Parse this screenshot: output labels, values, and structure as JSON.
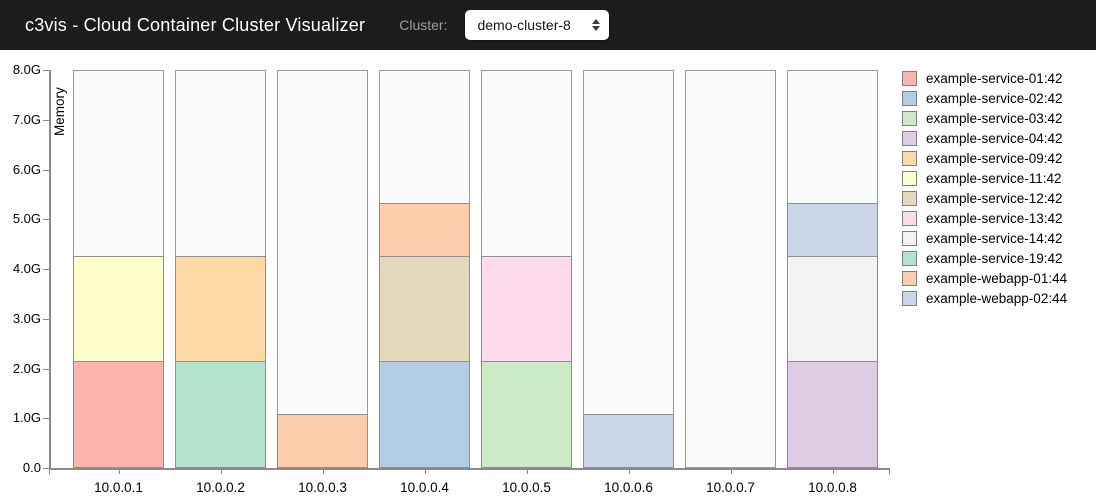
{
  "header": {
    "title": "c3vis - Cloud Container Cluster Visualizer",
    "cluster_label": "Cluster:",
    "cluster_select": {
      "value": "demo-cluster-8"
    }
  },
  "chart_data": {
    "type": "bar",
    "stacked": true,
    "ylabel": "Memory",
    "unit": "G",
    "ylim": [
      0,
      8
    ],
    "registered_memory_per_instance_g": 8.0,
    "y_ticks": [
      "0.0",
      "1.0G",
      "2.0G",
      "3.0G",
      "4.0G",
      "5.0G",
      "6.0G",
      "7.0G",
      "8.0G"
    ],
    "categories": [
      "10.0.0.1",
      "10.0.0.2",
      "10.0.0.3",
      "10.0.0.4",
      "10.0.0.5",
      "10.0.0.6",
      "10.0.0.7",
      "10.0.0.8"
    ],
    "legend_position": "right",
    "grid": false,
    "colors": {
      "bar_background": "#fbfbfb",
      "bar_border": "#999999",
      "axis": "#8a8a8a"
    },
    "legend": [
      {
        "label": "example-service-01:42",
        "color": "#fbb4ae"
      },
      {
        "label": "example-service-02:42",
        "color": "#b3cde3"
      },
      {
        "label": "example-service-03:42",
        "color": "#ccebc5"
      },
      {
        "label": "example-service-04:42",
        "color": "#decbe4"
      },
      {
        "label": "example-service-09:42",
        "color": "#fed9a6"
      },
      {
        "label": "example-service-11:42",
        "color": "#ffffcc"
      },
      {
        "label": "example-service-12:42",
        "color": "#e5d8bd"
      },
      {
        "label": "example-service-13:42",
        "color": "#fddaec"
      },
      {
        "label": "example-service-14:42",
        "color": "#f2f2f2"
      },
      {
        "label": "example-service-19:42",
        "color": "#b3e2cd"
      },
      {
        "label": "example-webapp-01:44",
        "color": "#fdcdac"
      },
      {
        "label": "example-webapp-02:44",
        "color": "#cbd5e8"
      }
    ],
    "bars": [
      {
        "instance": "10.0.0.1",
        "segments": [
          {
            "task": "example-service-01:42",
            "value": 2.125
          },
          {
            "task": "example-service-11:42",
            "value": 2.125
          }
        ]
      },
      {
        "instance": "10.0.0.2",
        "segments": [
          {
            "task": "example-service-19:42",
            "value": 2.125
          },
          {
            "task": "example-service-09:42",
            "value": 2.125
          }
        ]
      },
      {
        "instance": "10.0.0.3",
        "segments": [
          {
            "task": "example-webapp-01:44",
            "value": 1.0625
          }
        ]
      },
      {
        "instance": "10.0.0.4",
        "segments": [
          {
            "task": "example-service-02:42",
            "value": 2.125
          },
          {
            "task": "example-service-12:42",
            "value": 2.125
          },
          {
            "task": "example-webapp-01:44",
            "value": 1.0625
          }
        ]
      },
      {
        "instance": "10.0.0.5",
        "segments": [
          {
            "task": "example-service-03:42",
            "value": 2.125
          },
          {
            "task": "example-service-13:42",
            "value": 2.125
          }
        ]
      },
      {
        "instance": "10.0.0.6",
        "segments": [
          {
            "task": "example-webapp-02:44",
            "value": 1.0625
          }
        ]
      },
      {
        "instance": "10.0.0.7",
        "segments": []
      },
      {
        "instance": "10.0.0.8",
        "segments": [
          {
            "task": "example-service-04:42",
            "value": 2.125
          },
          {
            "task": "example-service-14:42",
            "value": 2.125
          },
          {
            "task": "example-webapp-02:44",
            "value": 1.0625
          }
        ]
      }
    ]
  }
}
